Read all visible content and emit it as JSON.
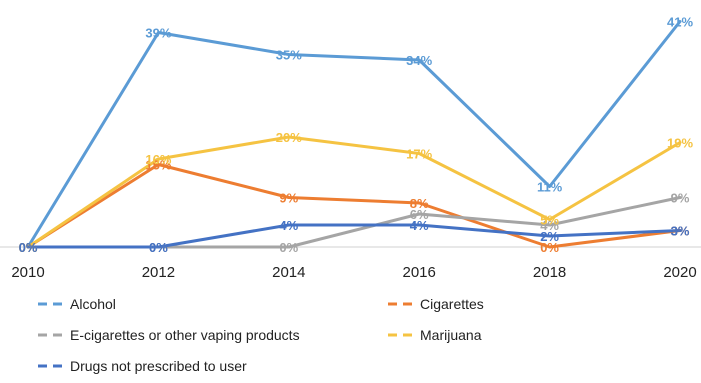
{
  "chart_data": {
    "type": "line",
    "title": "",
    "xlabel": "",
    "ylabel": "",
    "x": [
      "2010",
      "2012",
      "2014",
      "2016",
      "2018",
      "2020"
    ],
    "ylim": [
      0,
      42
    ],
    "grid": false,
    "legend_position": "bottom",
    "series": [
      {
        "name": "Alcohol",
        "color": "#5B9BD5",
        "values": [
          0,
          39,
          35,
          34,
          11,
          41
        ],
        "labels": [
          "0%",
          "39%",
          "35%",
          "34%",
          "11%",
          "41%"
        ]
      },
      {
        "name": "Cigarettes",
        "color": "#ED7D31",
        "values": [
          0,
          15,
          9,
          8,
          0,
          3
        ],
        "labels": [
          "0%",
          "15%",
          "9%",
          "8%",
          "0%",
          "3%"
        ]
      },
      {
        "name": "E-cigarettes or other vaping products",
        "color": "#A5A5A5",
        "values": [
          null,
          0,
          0,
          6,
          4,
          9
        ],
        "labels": [
          null,
          "0%",
          "0%",
          "6%",
          "4%",
          "9%"
        ]
      },
      {
        "name": "Marijuana",
        "color": "#F5C342",
        "values": [
          0,
          16,
          20,
          17,
          5,
          19
        ],
        "labels": [
          "0%",
          "16%",
          "20%",
          "17%",
          "5%",
          "19%"
        ]
      },
      {
        "name": "Drugs not prescribed to user",
        "color": "#4472C4",
        "values": [
          0,
          0,
          4,
          4,
          2,
          3
        ],
        "labels": [
          "0%",
          "0%",
          "4%",
          "4%",
          "2%",
          "3%"
        ]
      }
    ]
  }
}
